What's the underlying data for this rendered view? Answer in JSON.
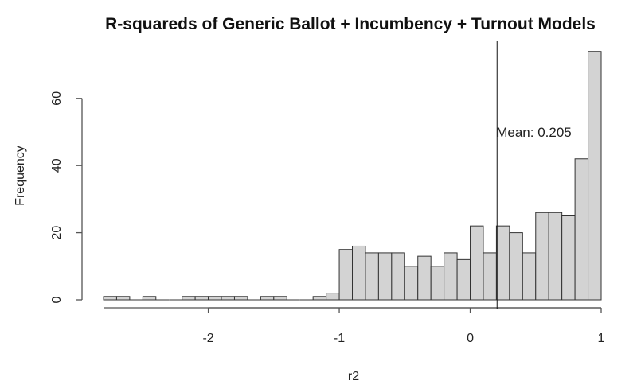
{
  "chart_data": {
    "type": "bar",
    "title": "R-squareds of Generic Ballot + Incumbency + Turnout Models",
    "xlabel": "r2",
    "ylabel": "Frequency",
    "xlim": [
      -2.8,
      1.0
    ],
    "ylim": [
      0,
      75
    ],
    "bin_width": 0.1,
    "x_ticks": [
      -2,
      -1,
      0,
      1
    ],
    "x_tick_labels": [
      "-2",
      "-1",
      "0",
      "1"
    ],
    "y_ticks": [
      0,
      20,
      40,
      60
    ],
    "y_tick_labels": [
      "0",
      "20",
      "40",
      "60"
    ],
    "bins": [
      {
        "x0": -2.8,
        "x1": -2.7,
        "count": 1
      },
      {
        "x0": -2.7,
        "x1": -2.6,
        "count": 1
      },
      {
        "x0": -2.6,
        "x1": -2.5,
        "count": 0
      },
      {
        "x0": -2.5,
        "x1": -2.4,
        "count": 1
      },
      {
        "x0": -2.4,
        "x1": -2.3,
        "count": 0
      },
      {
        "x0": -2.3,
        "x1": -2.2,
        "count": 0
      },
      {
        "x0": -2.2,
        "x1": -2.1,
        "count": 1
      },
      {
        "x0": -2.1,
        "x1": -2.0,
        "count": 1
      },
      {
        "x0": -2.0,
        "x1": -1.9,
        "count": 1
      },
      {
        "x0": -1.9,
        "x1": -1.8,
        "count": 1
      },
      {
        "x0": -1.8,
        "x1": -1.7,
        "count": 1
      },
      {
        "x0": -1.7,
        "x1": -1.6,
        "count": 0
      },
      {
        "x0": -1.6,
        "x1": -1.5,
        "count": 1
      },
      {
        "x0": -1.5,
        "x1": -1.4,
        "count": 1
      },
      {
        "x0": -1.4,
        "x1": -1.3,
        "count": 0
      },
      {
        "x0": -1.3,
        "x1": -1.2,
        "count": 0
      },
      {
        "x0": -1.2,
        "x1": -1.1,
        "count": 1
      },
      {
        "x0": -1.1,
        "x1": -1.0,
        "count": 2
      },
      {
        "x0": -1.0,
        "x1": -0.9,
        "count": 15
      },
      {
        "x0": -0.9,
        "x1": -0.8,
        "count": 16
      },
      {
        "x0": -0.8,
        "x1": -0.7,
        "count": 14
      },
      {
        "x0": -0.7,
        "x1": -0.6,
        "count": 14
      },
      {
        "x0": -0.6,
        "x1": -0.5,
        "count": 14
      },
      {
        "x0": -0.5,
        "x1": -0.4,
        "count": 10
      },
      {
        "x0": -0.4,
        "x1": -0.3,
        "count": 13
      },
      {
        "x0": -0.3,
        "x1": -0.2,
        "count": 10
      },
      {
        "x0": -0.2,
        "x1": -0.1,
        "count": 14
      },
      {
        "x0": -0.1,
        "x1": 0.0,
        "count": 12
      },
      {
        "x0": 0.0,
        "x1": 0.1,
        "count": 22
      },
      {
        "x0": 0.1,
        "x1": 0.2,
        "count": 14
      },
      {
        "x0": 0.2,
        "x1": 0.3,
        "count": 22
      },
      {
        "x0": 0.3,
        "x1": 0.4,
        "count": 20
      },
      {
        "x0": 0.4,
        "x1": 0.5,
        "count": 14
      },
      {
        "x0": 0.5,
        "x1": 0.6,
        "count": 26
      },
      {
        "x0": 0.6,
        "x1": 0.7,
        "count": 26
      },
      {
        "x0": 0.7,
        "x1": 0.8,
        "count": 25
      },
      {
        "x0": 0.8,
        "x1": 0.9,
        "count": 42
      },
      {
        "x0": 0.9,
        "x1": 1.0,
        "count": 74
      }
    ],
    "mean": {
      "value": 0.205,
      "label": "Mean: 0.205"
    },
    "grid": false,
    "colors": {
      "bar_fill": "#d3d3d3",
      "bar_stroke": "#333333",
      "axis": "#555555"
    }
  }
}
